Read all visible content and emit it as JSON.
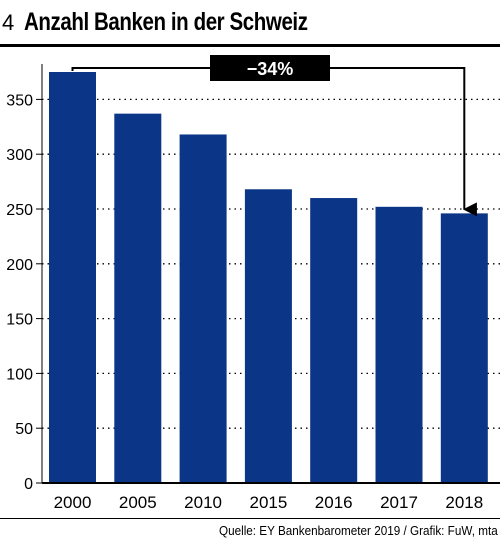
{
  "header": {
    "number": "4",
    "title": "Anzahl Banken in der Schweiz"
  },
  "footer": {
    "source": "Quelle: EY Bankenbarometer 2019 / Grafik: FuW, mta"
  },
  "chart_data": {
    "type": "bar",
    "title": "Anzahl Banken in der Schweiz",
    "categories": [
      "2000",
      "2005",
      "2010",
      "2015",
      "2016",
      "2017",
      "2018"
    ],
    "values": [
      375,
      337,
      318,
      268,
      260,
      252,
      246
    ],
    "ylim": [
      0,
      375
    ],
    "yticks": [
      0,
      50,
      100,
      150,
      200,
      250,
      300,
      350
    ],
    "grid": "dotted-horizontal",
    "bar_color": "#0b3587",
    "annotation": {
      "label": "−34%",
      "from": "2000",
      "to": "2018"
    }
  }
}
